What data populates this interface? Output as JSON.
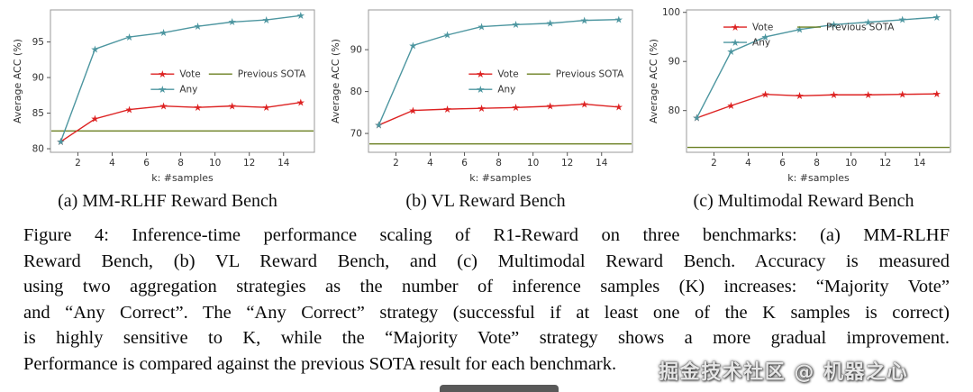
{
  "chart_data": [
    {
      "type": "line",
      "subcaption": "(a) MM-RLHF Reward Bench",
      "xlabel": "k: #samples",
      "ylabel": "Average ACC (%)",
      "x": [
        1,
        3,
        5,
        7,
        9,
        11,
        13,
        15
      ],
      "xticks": [
        2,
        4,
        6,
        8,
        10,
        12,
        14
      ],
      "yticks": [
        80,
        85,
        90,
        95
      ],
      "xlim": [
        0.4,
        15.8
      ],
      "ylim": [
        79.5,
        99.5
      ],
      "legend_position": "center",
      "grid": false,
      "series": [
        {
          "name": "Vote",
          "color": "#dd2222",
          "marker": "star",
          "values": [
            81,
            84.2,
            85.5,
            86,
            85.8,
            86,
            85.8,
            86.5
          ]
        },
        {
          "name": "Any",
          "color": "#4d96a0",
          "marker": "star",
          "values": [
            81,
            94,
            95.7,
            96.3,
            97.2,
            97.8,
            98.1,
            98.7
          ]
        }
      ],
      "sota_line": {
        "label": "Previous SOTA",
        "color": "#6b8023",
        "value": 82.5
      },
      "legend": {
        "x": 0.38,
        "y": 0.4,
        "col2x": 0.6
      }
    },
    {
      "type": "line",
      "subcaption": "(b) VL Reward Bench",
      "xlabel": "k: #samples",
      "ylabel": "Average ACC (%)",
      "x": [
        1,
        3,
        5,
        7,
        9,
        11,
        13,
        15
      ],
      "xticks": [
        2,
        4,
        6,
        8,
        10,
        12,
        14
      ],
      "yticks": [
        70,
        80,
        90
      ],
      "xlim": [
        0.4,
        15.8
      ],
      "ylim": [
        65.5,
        99.5
      ],
      "legend_position": "center",
      "grid": false,
      "series": [
        {
          "name": "Vote",
          "color": "#dd2222",
          "marker": "star",
          "values": [
            72,
            75.5,
            75.8,
            76,
            76.2,
            76.5,
            77,
            76.3
          ]
        },
        {
          "name": "Any",
          "color": "#4d96a0",
          "marker": "star",
          "values": [
            72,
            91,
            93.5,
            95.5,
            96,
            96.3,
            97,
            97.2
          ]
        }
      ],
      "sota_line": {
        "label": "Previous SOTA",
        "color": "#6b8023",
        "value": 67.5
      },
      "legend": {
        "x": 0.38,
        "y": 0.4,
        "col2x": 0.6
      }
    },
    {
      "type": "line",
      "subcaption": "(c) Multimodal Reward Bench",
      "xlabel": "k: #samples",
      "ylabel": "Average ACC (%)",
      "x": [
        1,
        3,
        5,
        7,
        9,
        11,
        13,
        15
      ],
      "xticks": [
        2,
        4,
        6,
        8,
        10,
        12,
        14
      ],
      "yticks": [
        80,
        90,
        100
      ],
      "xlim": [
        0.4,
        15.8
      ],
      "ylim": [
        71.5,
        100.5
      ],
      "legend_position": "top-left",
      "grid": false,
      "series": [
        {
          "name": "Vote",
          "color": "#dd2222",
          "marker": "star",
          "values": [
            78.5,
            81,
            83.3,
            83,
            83.2,
            83.2,
            83.3,
            83.4
          ]
        },
        {
          "name": "Any",
          "color": "#4d96a0",
          "marker": "star",
          "values": [
            78.5,
            92,
            95,
            96.5,
            97.5,
            98,
            98.5,
            99
          ]
        }
      ],
      "sota_line": {
        "label": "Previous SOTA",
        "color": "#6b8023",
        "value": 72.5
      },
      "legend": {
        "x": 0.14,
        "y": 0.07,
        "col2x": 0.42
      }
    }
  ],
  "caption": {
    "lines": [
      "Figure 4: Inference-time performance scaling of R1-Reward on three benchmarks: (a) MM-RLHF",
      "Reward Bench, (b) VL Reward Bench, and (c) Multimodal Reward Bench. Accuracy is measured",
      "using two aggregation strategies as the number of inference samples (K) increases: “Majority Vote”",
      "and “Any Correct”. The “Any Correct” strategy (successful if at least one of the K samples is correct)",
      "is highly sensitive to K, while the “Majority Vote” strategy shows a more gradual improvement.",
      "Performance is compared against the previous SOTA result for each benchmark."
    ]
  },
  "watermark": {
    "text": "掘金技术社区 @ 机器之心"
  }
}
